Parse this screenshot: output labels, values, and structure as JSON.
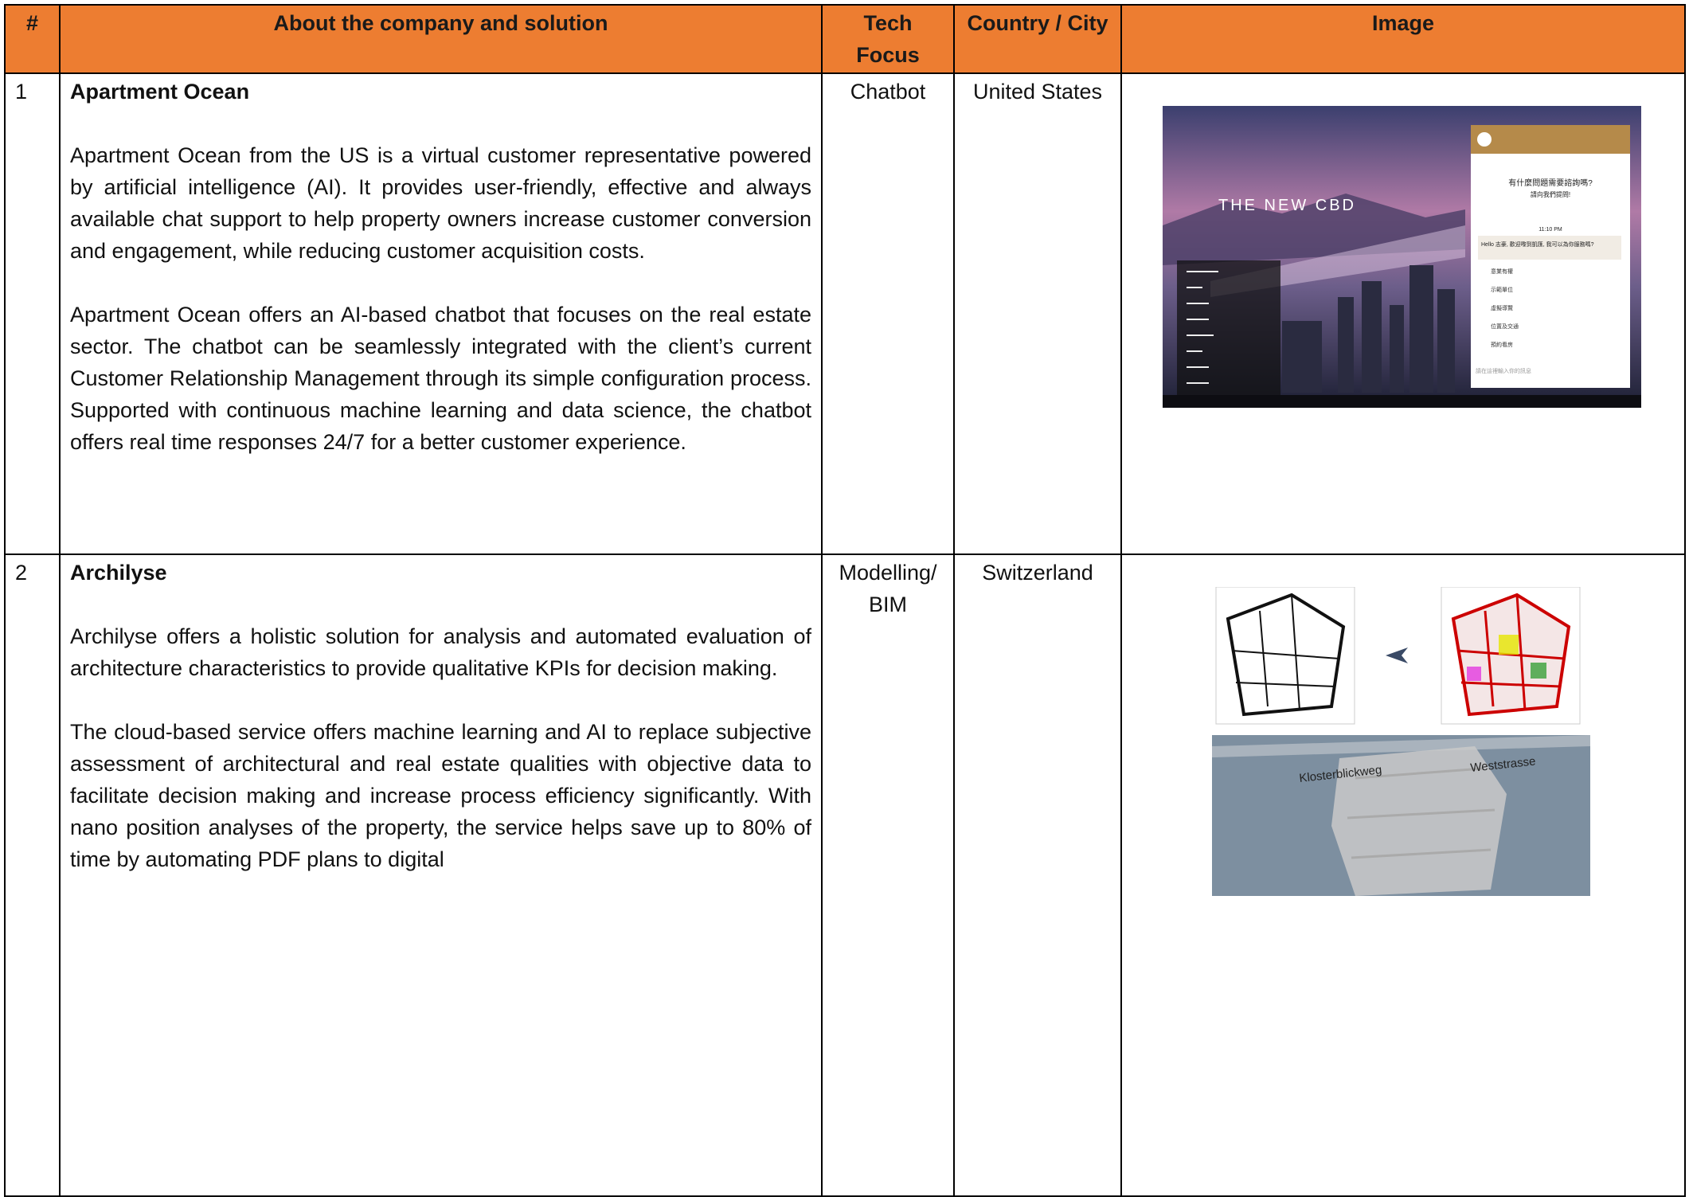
{
  "table": {
    "headers": [
      "#",
      "About the company and solution",
      "Tech Focus",
      "Country / City",
      "Image"
    ],
    "rows": [
      {
        "number": "1",
        "company": "Apartment Ocean",
        "paragraphs": [
          "Apartment Ocean from the US is a virtual customer representative powered by artificial intelligence (AI). It provides user-friendly, effective and always available chat support to help property owners increase customer conversion and engagement, while reducing customer acquisition costs.",
          "Apartment Ocean offers an AI-based chatbot that focuses on the real estate sector. The chatbot can be seamlessly integrated with the client’s current Customer Relationship Management through its simple configuration process. Supported with continuous machine learning and data science, the chatbot offers real time responses 24/7 for a better customer experience."
        ],
        "tech_focus": "Chatbot",
        "country": "United States",
        "image_texts": [
          "THE NEW CBD",
          "有什麼問題需要諮詢嗎?",
          "請向我們提問!",
          "11:10 PM",
          "Hello 志豪, 歡迎嚟到凱匯, 我可以為你服務嗎?",
          "意業有權",
          "示範單位",
          "虛擬導覽",
          "位置及交通",
          "預約看房",
          "請在這裡輸入你的訊息"
        ]
      },
      {
        "number": "2",
        "company": "Archilyse",
        "paragraphs": [
          "Archilyse offers a holistic solution for analysis and automated evaluation of architecture characteristics to provide qualitative KPIs for decision making.",
          "The cloud-based service offers machine learning and AI to replace subjective assessment of architectural and real estate qualities with objective data to facilitate decision making and increase process efficiency significantly. With nano position analyses of the property, the service helps save up to 80% of time by automating PDF plans to digital"
        ],
        "tech_focus": "Modelling/ BIM",
        "country": "Switzerland",
        "image_texts": [
          "Klosterblickweg",
          "Weststrasse"
        ]
      }
    ]
  }
}
